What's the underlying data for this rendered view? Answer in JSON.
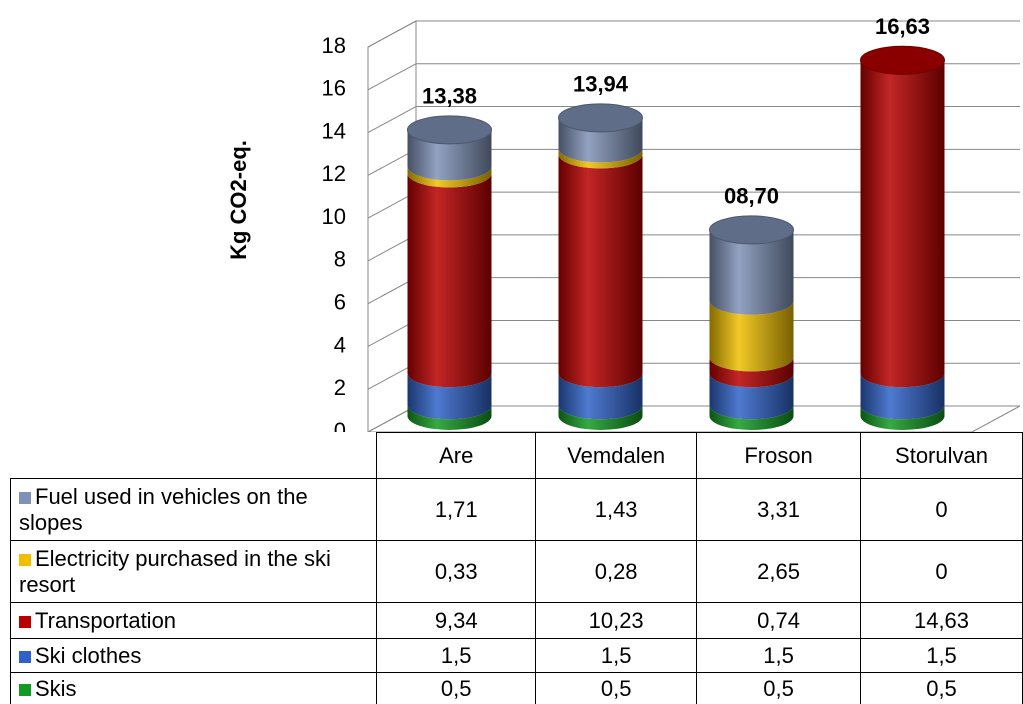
{
  "chart_data": {
    "type": "bar",
    "stacked": true,
    "ylabel": "Kg CO2-eq.",
    "categories": [
      "Are",
      "Vemdalen",
      "Froson",
      "Storulvan"
    ],
    "series": [
      {
        "name": "Fuel used in vehicles on the slopes",
        "color": "#7f91b6",
        "values": [
          1.71,
          1.43,
          3.31,
          0
        ],
        "value_labels": [
          "1,71",
          "1,43",
          "3,31",
          "0"
        ]
      },
      {
        "name": "Electricity purchased in the ski resort",
        "color": "#f0c000",
        "values": [
          0.33,
          0.28,
          2.65,
          0
        ],
        "value_labels": [
          "0,33",
          "0,28",
          "2,65",
          "0"
        ]
      },
      {
        "name": "Transportation",
        "color": "#b80000",
        "values": [
          9.34,
          10.23,
          0.74,
          14.63
        ],
        "value_labels": [
          "9,34",
          "10,23",
          "0,74",
          "14,63"
        ]
      },
      {
        "name": "Ski clothes",
        "color": "#2f62c8",
        "values": [
          1.5,
          1.5,
          1.5,
          1.5
        ],
        "value_labels": [
          "1,5",
          "1,5",
          "1,5",
          "1,5"
        ]
      },
      {
        "name": "Skis",
        "color": "#129a22",
        "values": [
          0.5,
          0.5,
          0.5,
          0.5
        ],
        "value_labels": [
          "0,5",
          "0,5",
          "0,5",
          "0,5"
        ]
      }
    ],
    "totals": {
      "values": [
        13.38,
        13.94,
        8.7,
        16.63
      ],
      "value_labels": [
        "13,38",
        "13,94",
        "08,70",
        "16,63"
      ]
    },
    "ylim": [
      0,
      18
    ],
    "yticks": [
      0,
      2,
      4,
      6,
      8,
      10,
      12,
      14,
      16,
      18
    ],
    "grid": true
  }
}
